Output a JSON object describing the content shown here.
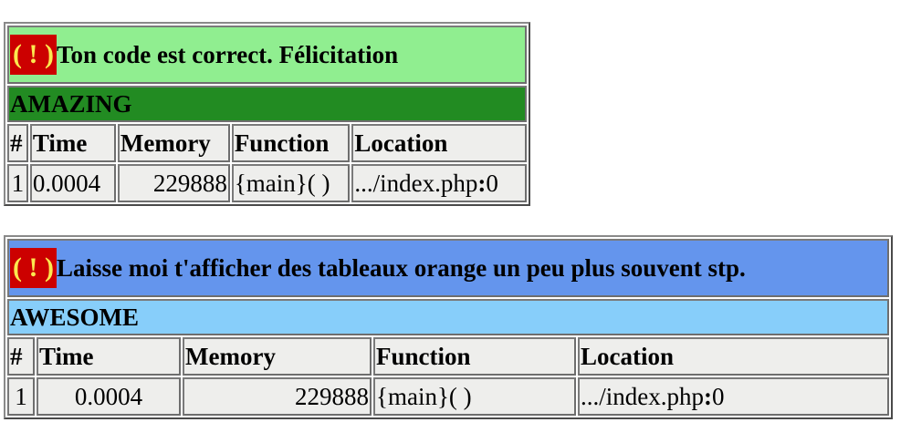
{
  "warning_icon": "( ! )",
  "colors": {
    "icon_bg": "#cc0000",
    "icon_fg": "#fce94f",
    "notice1_bg": "#90ee90",
    "level1_bg": "#228b22",
    "notice2_bg": "#6495ed",
    "level2_bg": "#87cefa",
    "cell_bg": "#eeeeec"
  },
  "tables": [
    {
      "message": "Ton code est correct. Félicitation",
      "level": "AMAZING",
      "columns": [
        "#",
        "Time",
        "Memory",
        "Function",
        "Location"
      ],
      "row": {
        "index": "1",
        "time": "0.0004",
        "memory": "229888",
        "function": "{main}( )",
        "location_path": ".../index.php",
        "location_sep": ":",
        "location_line": "0"
      }
    },
    {
      "message": "Laisse moi t'afficher des tableaux orange un peu plus souvent stp.",
      "level": "AWESOME",
      "columns": [
        "#",
        "Time",
        "Memory",
        "Function",
        "Location"
      ],
      "row": {
        "index": "1",
        "time": "0.0004",
        "memory": "229888",
        "function": "{main}( )",
        "location_path": ".../index.php",
        "location_sep": ":",
        "location_line": "0"
      }
    }
  ]
}
